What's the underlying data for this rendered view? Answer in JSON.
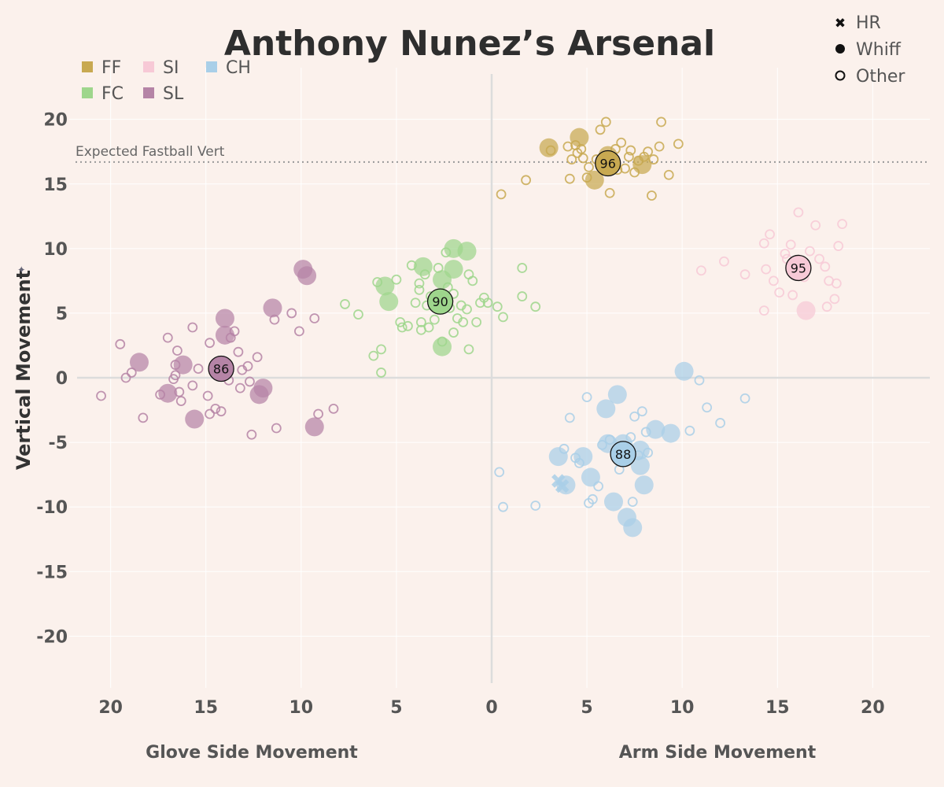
{
  "chart_data": {
    "type": "scatter",
    "title": "Anthony Nunez’s Arsenal",
    "xlabel_left": "Glove Side Movement",
    "xlabel_right": "Arm Side Movement",
    "ylabel": "Vertical Movement",
    "xlim": [
      -23,
      23
    ],
    "ylim": [
      -24,
      24
    ],
    "x_ticks": [
      -20,
      -15,
      -10,
      -5,
      0,
      5,
      10,
      15,
      20
    ],
    "x_tick_labels": [
      "20",
      "15",
      "10",
      "5",
      "0",
      "5",
      "10",
      "15",
      "20"
    ],
    "y_ticks": [
      20,
      15,
      10,
      5,
      0,
      -5,
      -10,
      -15,
      -20
    ],
    "reference_line": {
      "y": 16.7,
      "label": "Expected Fastball Vert"
    },
    "pitch_legend": [
      {
        "code": "FF",
        "color": "#c8a951"
      },
      {
        "code": "SI",
        "color": "#f7c9d6"
      },
      {
        "code": "CH",
        "color": "#a9cfe8"
      },
      {
        "code": "FC",
        "color": "#9ed68c"
      },
      {
        "code": "SL",
        "color": "#b584a6"
      }
    ],
    "result_legend": [
      {
        "label": "HR",
        "icon": "x-mark"
      },
      {
        "label": "Whiff",
        "icon": "filled-dot"
      },
      {
        "label": "Other",
        "icon": "hollow-circle"
      }
    ],
    "series": [
      {
        "name": "FF",
        "color": "#c8a951",
        "average": {
          "x": 6.1,
          "y": 16.6,
          "velo": "96"
        },
        "whiffs": [
          [
            3.0,
            17.8
          ],
          [
            4.6,
            18.6
          ],
          [
            5.4,
            15.3
          ],
          [
            7.9,
            16.5
          ],
          [
            6.1,
            17.2
          ]
        ],
        "others": [
          [
            3.1,
            17.6
          ],
          [
            4.0,
            17.9
          ],
          [
            4.2,
            16.9
          ],
          [
            4.5,
            17.4
          ],
          [
            4.8,
            17.0
          ],
          [
            5.1,
            16.3
          ],
          [
            5.0,
            15.5
          ],
          [
            5.7,
            19.2
          ],
          [
            6.0,
            19.8
          ],
          [
            6.5,
            17.7
          ],
          [
            6.8,
            18.2
          ],
          [
            7.0,
            16.2
          ],
          [
            7.3,
            17.6
          ],
          [
            7.5,
            15.9
          ],
          [
            7.7,
            16.8
          ],
          [
            8.0,
            17.1
          ],
          [
            8.2,
            17.5
          ],
          [
            8.5,
            16.9
          ],
          [
            8.8,
            17.9
          ],
          [
            8.9,
            19.8
          ],
          [
            9.3,
            15.7
          ],
          [
            9.8,
            18.1
          ],
          [
            8.4,
            14.1
          ],
          [
            6.2,
            14.3
          ],
          [
            1.8,
            15.3
          ],
          [
            0.5,
            14.2
          ],
          [
            4.1,
            15.4
          ],
          [
            5.5,
            16.9
          ],
          [
            6.6,
            16.1
          ],
          [
            4.4,
            18.0
          ],
          [
            7.2,
            17.1
          ],
          [
            4.7,
            17.7
          ]
        ]
      },
      {
        "name": "SI",
        "color": "#f7c9d6",
        "average": {
          "x": 16.1,
          "y": 8.5,
          "velo": "95"
        },
        "whiffs": [
          [
            16.5,
            5.2
          ]
        ],
        "others": [
          [
            11.0,
            8.3
          ],
          [
            12.2,
            9.0
          ],
          [
            13.3,
            8.0
          ],
          [
            14.3,
            10.4
          ],
          [
            14.6,
            11.1
          ],
          [
            14.8,
            7.5
          ],
          [
            15.1,
            6.6
          ],
          [
            15.4,
            9.6
          ],
          [
            15.7,
            10.3
          ],
          [
            15.8,
            6.4
          ],
          [
            16.1,
            12.8
          ],
          [
            16.4,
            7.8
          ],
          [
            16.7,
            9.8
          ],
          [
            17.0,
            11.8
          ],
          [
            17.2,
            9.2
          ],
          [
            17.5,
            8.6
          ],
          [
            17.7,
            7.5
          ],
          [
            18.0,
            6.1
          ],
          [
            18.1,
            7.3
          ],
          [
            18.2,
            10.2
          ],
          [
            18.4,
            11.9
          ],
          [
            17.6,
            5.5
          ],
          [
            14.3,
            5.2
          ],
          [
            15.5,
            9.2
          ],
          [
            14.4,
            8.4
          ]
        ]
      },
      {
        "name": "FC",
        "color": "#9ed68c",
        "average": {
          "x": -2.7,
          "y": 5.9,
          "velo": "90"
        },
        "whiffs": [
          [
            -1.3,
            9.8
          ],
          [
            -2.0,
            10.0
          ],
          [
            -2.0,
            8.4
          ],
          [
            -3.6,
            8.6
          ],
          [
            -5.6,
            7.1
          ],
          [
            -5.4,
            5.9
          ],
          [
            -2.6,
            7.6
          ],
          [
            -2.6,
            2.4
          ]
        ],
        "others": [
          [
            -7.7,
            5.7
          ],
          [
            -7.0,
            4.9
          ],
          [
            -6.2,
            1.7
          ],
          [
            -6.0,
            7.4
          ],
          [
            -5.8,
            2.2
          ],
          [
            -5.8,
            0.4
          ],
          [
            -5.0,
            7.6
          ],
          [
            -4.8,
            4.3
          ],
          [
            -4.7,
            3.9
          ],
          [
            -4.2,
            8.7
          ],
          [
            -4.0,
            5.8
          ],
          [
            -3.8,
            7.3
          ],
          [
            -3.8,
            6.8
          ],
          [
            -3.7,
            4.3
          ],
          [
            -3.7,
            3.7
          ],
          [
            -3.5,
            8.0
          ],
          [
            -3.4,
            5.6
          ],
          [
            -3.3,
            3.9
          ],
          [
            -3.2,
            6.3
          ],
          [
            -3.0,
            4.5
          ],
          [
            -2.8,
            8.5
          ],
          [
            -2.6,
            2.8
          ],
          [
            -2.4,
            9.7
          ],
          [
            -2.3,
            7.0
          ],
          [
            -2.0,
            6.5
          ],
          [
            -2.0,
            3.5
          ],
          [
            -1.8,
            4.6
          ],
          [
            -1.6,
            5.6
          ],
          [
            -1.5,
            4.3
          ],
          [
            -1.3,
            5.3
          ],
          [
            -1.2,
            8.0
          ],
          [
            -1.2,
            2.2
          ],
          [
            -1.0,
            7.5
          ],
          [
            -0.8,
            4.3
          ],
          [
            -0.6,
            5.8
          ],
          [
            -0.4,
            6.2
          ],
          [
            -0.2,
            5.8
          ],
          [
            0.3,
            5.5
          ],
          [
            0.6,
            4.7
          ],
          [
            1.6,
            8.5
          ],
          [
            1.6,
            6.3
          ],
          [
            2.3,
            5.5
          ],
          [
            -4.4,
            4.0
          ],
          [
            -2.2,
            5.4
          ]
        ]
      },
      {
        "name": "SL",
        "color": "#b584a6",
        "average": {
          "x": -14.2,
          "y": 0.7,
          "velo": "86"
        },
        "whiffs": [
          [
            -9.9,
            8.4
          ],
          [
            -9.7,
            7.9
          ],
          [
            -11.5,
            5.4
          ],
          [
            -14.0,
            4.6
          ],
          [
            -14.0,
            3.3
          ],
          [
            -18.5,
            1.2
          ],
          [
            -16.2,
            1.0
          ],
          [
            -17.0,
            -1.2
          ],
          [
            -12.0,
            -0.8
          ],
          [
            -12.2,
            -1.3
          ],
          [
            -15.6,
            -3.2
          ],
          [
            -9.3,
            -3.8
          ]
        ],
        "others": [
          [
            -20.5,
            -1.4
          ],
          [
            -19.5,
            2.6
          ],
          [
            -19.2,
            0.0
          ],
          [
            -18.9,
            0.4
          ],
          [
            -18.3,
            -3.1
          ],
          [
            -17.0,
            3.1
          ],
          [
            -16.7,
            -0.1
          ],
          [
            -16.6,
            0.2
          ],
          [
            -16.6,
            1.0
          ],
          [
            -16.5,
            2.1
          ],
          [
            -16.4,
            -1.1
          ],
          [
            -16.3,
            -1.8
          ],
          [
            -15.7,
            3.9
          ],
          [
            -15.7,
            -0.6
          ],
          [
            -15.4,
            0.7
          ],
          [
            -14.9,
            -1.4
          ],
          [
            -14.8,
            -2.8
          ],
          [
            -14.8,
            2.7
          ],
          [
            -14.5,
            -2.4
          ],
          [
            -14.2,
            -2.6
          ],
          [
            -13.7,
            3.1
          ],
          [
            -13.5,
            3.6
          ],
          [
            -13.3,
            2.0
          ],
          [
            -13.2,
            -0.8
          ],
          [
            -13.1,
            0.6
          ],
          [
            -12.8,
            0.9
          ],
          [
            -12.7,
            -0.3
          ],
          [
            -12.6,
            -4.4
          ],
          [
            -12.3,
            1.6
          ],
          [
            -11.4,
            4.5
          ],
          [
            -11.3,
            -3.9
          ],
          [
            -10.5,
            5.0
          ],
          [
            -10.1,
            3.6
          ],
          [
            -9.3,
            4.6
          ],
          [
            -9.1,
            -2.8
          ],
          [
            -8.3,
            -2.4
          ],
          [
            -13.8,
            -0.2
          ],
          [
            -17.4,
            -1.3
          ]
        ]
      },
      {
        "name": "CH",
        "color": "#a9cfe8",
        "average": {
          "x": 6.9,
          "y": -5.9,
          "velo": "88"
        },
        "whiffs": [
          [
            6.6,
            -1.3
          ],
          [
            6.0,
            -2.4
          ],
          [
            3.5,
            -6.1
          ],
          [
            4.8,
            -6.1
          ],
          [
            6.1,
            -5.1
          ],
          [
            6.9,
            -5.1
          ],
          [
            7.8,
            -5.6
          ],
          [
            7.8,
            -6.8
          ],
          [
            8.6,
            -4.0
          ],
          [
            9.4,
            -4.3
          ],
          [
            10.1,
            0.5
          ],
          [
            5.2,
            -7.7
          ],
          [
            3.9,
            -8.3
          ],
          [
            6.4,
            -9.6
          ],
          [
            7.1,
            -10.8
          ],
          [
            7.4,
            -11.6
          ],
          [
            8.0,
            -8.3
          ]
        ],
        "hrs": [
          [
            3.5,
            -8.0
          ],
          [
            3.7,
            -8.4
          ]
        ],
        "others": [
          [
            0.4,
            -7.3
          ],
          [
            0.6,
            -10.0
          ],
          [
            2.3,
            -9.9
          ],
          [
            3.8,
            -5.5
          ],
          [
            4.1,
            -3.1
          ],
          [
            4.4,
            -6.2
          ],
          [
            4.6,
            -6.6
          ],
          [
            5.0,
            -1.5
          ],
          [
            5.1,
            -9.7
          ],
          [
            5.3,
            -9.4
          ],
          [
            5.6,
            -8.4
          ],
          [
            5.8,
            -5.2
          ],
          [
            6.2,
            -4.8
          ],
          [
            6.5,
            -5.9
          ],
          [
            6.7,
            -7.1
          ],
          [
            7.0,
            -6.3
          ],
          [
            7.3,
            -4.6
          ],
          [
            7.4,
            -9.6
          ],
          [
            7.5,
            -3.0
          ],
          [
            7.7,
            -6.0
          ],
          [
            7.9,
            -2.6
          ],
          [
            8.2,
            -5.8
          ],
          [
            8.1,
            -4.2
          ],
          [
            10.4,
            -4.1
          ],
          [
            10.9,
            -0.2
          ],
          [
            11.3,
            -2.3
          ],
          [
            12.0,
            -3.5
          ],
          [
            13.3,
            -1.6
          ]
        ]
      }
    ]
  }
}
